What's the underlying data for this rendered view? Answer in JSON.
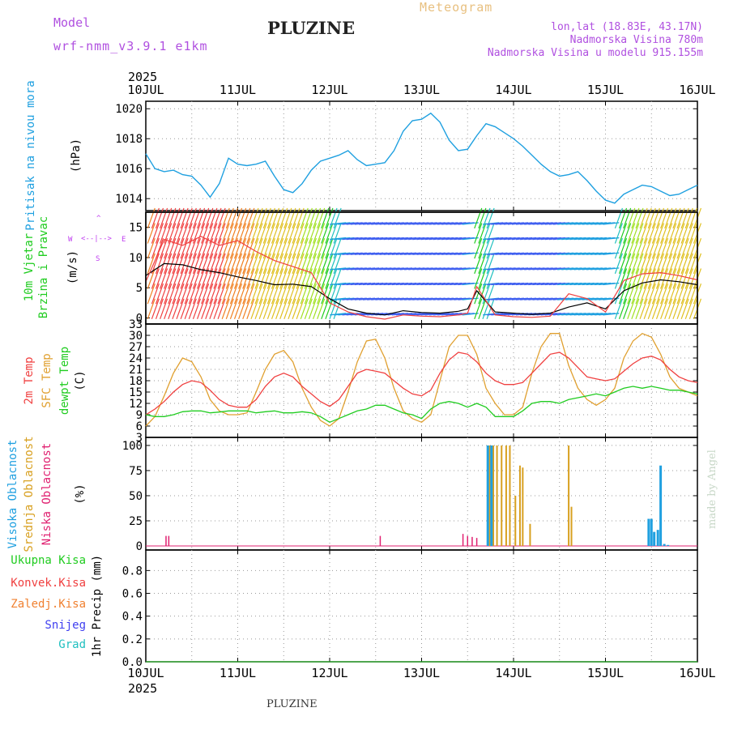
{
  "header": {
    "model_label": "Model",
    "model_name": "wrf-nmm_v3.9.1  e1km",
    "station": "PLUZINE",
    "product": "Meteogram",
    "lonlat": "lon,lat (18.83E, 43.17N)",
    "altitude": "Nadmorska Visina 780m",
    "model_altitude": "Nadmorska Visina u modelu 915.155m",
    "year": "2025",
    "footer_station": "PLUZINE",
    "credit": "made by Angel"
  },
  "colors": {
    "pressure": "#1fa0e0",
    "temp2m": "#f04040",
    "sfc_temp": "#e0a030",
    "dewpt": "#20cc20",
    "high_cloud": "#20a0e0",
    "mid_cloud": "#d8a020",
    "low_cloud": "#e02070",
    "precip_total": "#20cc20",
    "precip_conv": "#f04040",
    "precip_ice": "#f08030",
    "precip_snow": "#4040f0",
    "precip_hail": "#20c0c0",
    "wind_purple": "#8020e0",
    "wind_label": "#c040f0"
  },
  "chart_data": [
    {
      "panel": "pressure",
      "type": "line",
      "ylabel": [
        "Pritisak na nivou mora",
        "(hPa)"
      ],
      "x_unit": "day offset from 10 JUL 2025 00UTC",
      "xticklabels": [
        "10JUL",
        "11JUL",
        "12JUL",
        "13JUL",
        "14JUL",
        "15JUL",
        "16JUL"
      ],
      "yticks": [
        1014,
        1016,
        1018,
        1020
      ],
      "ylim": [
        1013.2,
        1020.5
      ],
      "grid": true,
      "series": [
        {
          "key": "pressure",
          "x": [
            0,
            0.1,
            0.2,
            0.3,
            0.4,
            0.5,
            0.6,
            0.7,
            0.8,
            0.9,
            1,
            1.1,
            1.2,
            1.3,
            1.4,
            1.5,
            1.6,
            1.7,
            1.8,
            1.9,
            2,
            2.1,
            2.2,
            2.3,
            2.4,
            2.5,
            2.6,
            2.7,
            2.8,
            2.9,
            3,
            3.1,
            3.2,
            3.3,
            3.4,
            3.5,
            3.6,
            3.7,
            3.8,
            3.9,
            4,
            4.1,
            4.2,
            4.3,
            4.4,
            4.5,
            4.6,
            4.7,
            4.8,
            4.9,
            5,
            5.1,
            5.2,
            5.3,
            5.4,
            5.5,
            5.6,
            5.7,
            5.8,
            5.9,
            6
          ],
          "y": [
            1017,
            1016,
            1015.8,
            1015.9,
            1015.6,
            1015.5,
            1014.9,
            1014.1,
            1015,
            1016.7,
            1016.3,
            1016.2,
            1016.3,
            1016.5,
            1015.5,
            1014.6,
            1014.4,
            1015,
            1015.9,
            1016.5,
            1016.7,
            1016.9,
            1017.2,
            1016.6,
            1016.2,
            1016.3,
            1016.4,
            1017.2,
            1018.5,
            1019.2,
            1019.3,
            1019.7,
            1019.1,
            1017.9,
            1017.2,
            1017.3,
            1018.2,
            1019,
            1018.8,
            1018.4,
            1018,
            1017.5,
            1016.9,
            1016.3,
            1015.8,
            1015.5,
            1015.6,
            1015.8,
            1015.2,
            1014.5,
            1013.9,
            1013.7,
            1014.3,
            1014.6,
            1014.9,
            1014.8,
            1014.5,
            1014.2,
            1014.3,
            1014.6,
            1014.9
          ]
        }
      ]
    },
    {
      "panel": "wind",
      "type": "line",
      "ylabel": [
        "10m Vjetar",
        "Brzina i Pravac",
        "(m/s)"
      ],
      "compass": [
        "N",
        "E",
        "S",
        "W"
      ],
      "yticks": [
        0,
        5,
        10,
        15
      ],
      "ylim": [
        -1,
        17.5
      ],
      "grid": false,
      "series": [
        {
          "key": "wind_speed",
          "x": [
            0,
            0.2,
            0.4,
            0.6,
            0.8,
            1,
            1.2,
            1.4,
            1.6,
            1.8,
            2,
            2.2,
            2.4,
            2.6,
            2.8,
            3,
            3.2,
            3.4,
            3.5,
            3.6,
            3.8,
            4,
            4.2,
            4.4,
            4.6,
            4.8,
            5,
            5.2,
            5.4,
            5.6,
            5.8,
            6
          ],
          "y": [
            7,
            9,
            8.8,
            8,
            7.5,
            6.8,
            6.2,
            5.5,
            5.6,
            5.2,
            3.2,
            1.5,
            0.8,
            0.5,
            1.2,
            0.9,
            0.8,
            1.1,
            1.5,
            4.5,
            1,
            0.8,
            0.6,
            0.8,
            1.8,
            2.5,
            1.5,
            4.5,
            5.8,
            6.3,
            6,
            5.5
          ]
        },
        {
          "key": "wind_gust",
          "x": [
            0,
            0.2,
            0.4,
            0.6,
            0.8,
            1,
            1.2,
            1.4,
            1.6,
            1.8,
            2,
            2.2,
            2.4,
            2.6,
            2.8,
            3,
            3.2,
            3.4,
            3.5,
            3.6,
            3.8,
            4,
            4.2,
            4.4,
            4.6,
            4.8,
            5,
            5.2,
            5.4,
            5.6,
            5.8,
            6
          ],
          "y": [
            6,
            13,
            12,
            13.5,
            12,
            12.8,
            11,
            9.5,
            8.5,
            7.5,
            2.5,
            1,
            0.2,
            -0.2,
            0.5,
            0.3,
            0.2,
            0.5,
            0.8,
            5.2,
            0.5,
            0.2,
            0.1,
            0.3,
            4,
            3.2,
            1,
            6.2,
            7.3,
            7.5,
            7,
            6.3
          ]
        }
      ]
    },
    {
      "panel": "temperature",
      "type": "line",
      "ylabel": [
        "2m Temp",
        "SFC Temp",
        "dewpt Temp",
        "(C)"
      ],
      "yticks": [
        3,
        6,
        9,
        12,
        15,
        18,
        21,
        24,
        27,
        30,
        33
      ],
      "ylim": [
        3,
        33
      ],
      "grid": true,
      "series": [
        {
          "key": "temp2m",
          "x": [
            0,
            0.1,
            0.2,
            0.3,
            0.4,
            0.5,
            0.6,
            0.7,
            0.8,
            0.9,
            1,
            1.1,
            1.2,
            1.3,
            1.4,
            1.5,
            1.6,
            1.7,
            1.8,
            1.9,
            2,
            2.1,
            2.2,
            2.3,
            2.4,
            2.5,
            2.6,
            2.7,
            2.8,
            2.9,
            3,
            3.1,
            3.2,
            3.3,
            3.4,
            3.5,
            3.6,
            3.7,
            3.8,
            3.9,
            4,
            4.1,
            4.2,
            4.3,
            4.4,
            4.5,
            4.6,
            4.7,
            4.8,
            4.9,
            5,
            5.1,
            5.2,
            5.3,
            5.4,
            5.5,
            5.6,
            5.7,
            5.8,
            5.9,
            6
          ],
          "y": [
            9,
            10.5,
            12.5,
            15,
            17,
            18,
            17.5,
            15.5,
            13,
            11.5,
            11,
            11,
            13,
            16.5,
            19,
            20,
            19,
            16.5,
            14.5,
            12.5,
            11.2,
            13,
            16.5,
            20,
            21,
            20.5,
            20,
            18,
            16,
            14.5,
            14,
            15.5,
            20,
            23.5,
            25.5,
            25,
            23,
            20,
            18,
            17,
            17,
            17.5,
            20,
            22.5,
            25,
            25.5,
            24,
            21.5,
            19,
            18.5,
            18,
            18.5,
            20.5,
            22.5,
            24,
            24.5,
            23.5,
            21,
            19,
            18,
            17.5
          ]
        },
        {
          "key": "sfc_temp",
          "x": [
            0,
            0.1,
            0.2,
            0.3,
            0.4,
            0.5,
            0.6,
            0.7,
            0.8,
            0.9,
            1,
            1.1,
            1.2,
            1.3,
            1.4,
            1.5,
            1.6,
            1.7,
            1.8,
            1.9,
            2,
            2.1,
            2.2,
            2.3,
            2.4,
            2.5,
            2.6,
            2.7,
            2.8,
            2.9,
            3,
            3.1,
            3.2,
            3.3,
            3.4,
            3.5,
            3.6,
            3.7,
            3.8,
            3.9,
            4,
            4.1,
            4.2,
            4.3,
            4.4,
            4.5,
            4.6,
            4.7,
            4.8,
            4.9,
            5,
            5.1,
            5.2,
            5.3,
            5.4,
            5.5,
            5.6,
            5.7,
            5.8,
            5.9,
            6
          ],
          "y": [
            6,
            8.5,
            14,
            20,
            24,
            23,
            19,
            13,
            10,
            9,
            9,
            9.5,
            15,
            21,
            25,
            26,
            23,
            16,
            11,
            7.5,
            6,
            8,
            15,
            23,
            28.5,
            29,
            24,
            16,
            10,
            8,
            7,
            9,
            18,
            27,
            30,
            30,
            25,
            16,
            12,
            9,
            9,
            11,
            20,
            27,
            30.5,
            30.5,
            22,
            16,
            13,
            11.5,
            13,
            16,
            24,
            28.5,
            30.5,
            29.5,
            25,
            19,
            16,
            15,
            14
          ]
        },
        {
          "key": "dewpt",
          "x": [
            0,
            0.1,
            0.2,
            0.3,
            0.4,
            0.5,
            0.6,
            0.7,
            0.8,
            0.9,
            1,
            1.1,
            1.2,
            1.3,
            1.4,
            1.5,
            1.6,
            1.7,
            1.8,
            1.9,
            2,
            2.1,
            2.2,
            2.3,
            2.4,
            2.5,
            2.6,
            2.7,
            2.8,
            2.9,
            3,
            3.1,
            3.2,
            3.3,
            3.4,
            3.5,
            3.6,
            3.7,
            3.8,
            3.9,
            4,
            4.1,
            4.2,
            4.3,
            4.4,
            4.5,
            4.6,
            4.7,
            4.8,
            4.9,
            5,
            5.1,
            5.2,
            5.3,
            5.4,
            5.5,
            5.6,
            5.7,
            5.8,
            5.9,
            6
          ],
          "y": [
            9,
            8.5,
            8.5,
            9,
            9.8,
            10,
            10,
            9.5,
            9.7,
            10,
            10,
            10,
            9.5,
            9.8,
            10,
            9.5,
            9.5,
            9.8,
            9.5,
            8.5,
            7,
            8,
            9,
            10,
            10.5,
            11.5,
            11.5,
            10.5,
            9.5,
            9,
            8,
            10.5,
            12,
            12.5,
            12,
            11,
            12,
            11,
            8.5,
            8.5,
            8.5,
            10,
            12,
            12.5,
            12.5,
            12,
            13,
            13.5,
            14,
            14.5,
            14,
            15,
            16,
            16.5,
            16,
            16.5,
            16,
            15.5,
            15.5,
            15,
            14.5
          ]
        }
      ]
    },
    {
      "panel": "clouds",
      "type": "bar",
      "ylabel": [
        "Visoka Oblacnost",
        "Srednja Oblacnost",
        "Niska Oblacnost",
        "(%)"
      ],
      "yticks": [
        0,
        25,
        50,
        75,
        100
      ],
      "ylim": [
        -4,
        108
      ],
      "grid": true,
      "series": [
        {
          "key": "high_cloud",
          "x": [
            3.72,
            3.76,
            5.47,
            5.5,
            5.53,
            5.57,
            5.6,
            5.64,
            5.68
          ],
          "y": [
            100,
            100,
            27,
            27,
            14,
            16,
            80,
            2,
            1
          ]
        },
        {
          "key": "mid_cloud",
          "x": [
            3.74,
            3.78,
            3.82,
            3.87,
            3.92,
            3.96,
            4.02,
            4.07,
            4.1,
            4.18,
            4.6,
            4.63
          ],
          "y": [
            100,
            100,
            100,
            100,
            100,
            100,
            50,
            80,
            78,
            22,
            100,
            39
          ]
        },
        {
          "key": "low_cloud",
          "x": [
            0.22,
            0.25,
            2.55,
            3.45,
            3.5,
            3.55,
            3.6
          ],
          "y": [
            10,
            10,
            10,
            12,
            10,
            9,
            8
          ]
        }
      ]
    },
    {
      "panel": "precip",
      "type": "line",
      "ylabel": [
        "1hr Precip (mm)"
      ],
      "legend": [
        "Ukupna Kisa",
        "Konvek.Kisa",
        "Zaledj.Kisa",
        "Snijeg",
        "Grad"
      ],
      "yticks": [
        "0.0",
        "0.2",
        "0.4",
        "0.6",
        "0.8"
      ],
      "ylim": [
        0,
        0.98
      ],
      "grid": true,
      "series": [
        {
          "key": "precip_total",
          "x": [
            0,
            6
          ],
          "y": [
            0,
            0
          ]
        }
      ]
    }
  ]
}
